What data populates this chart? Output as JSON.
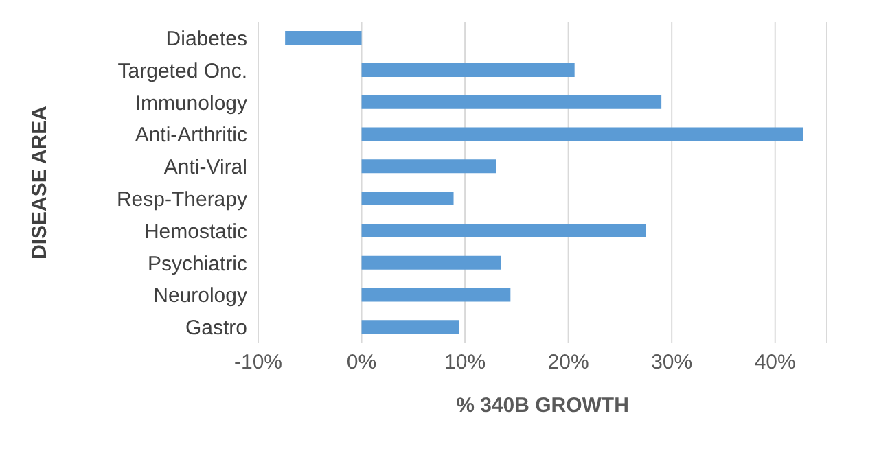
{
  "chart_data": {
    "type": "bar",
    "orientation": "horizontal",
    "xlabel": "% 340B GROWTH",
    "ylabel": "DISEASE AREA",
    "categories": [
      "Diabetes",
      "Targeted Onc.",
      "Immunology",
      "Anti-Arthritic",
      "Anti-Viral",
      "Resp-Therapy",
      "Hemostatic",
      "Psychiatric",
      "Neurology",
      "Gastro"
    ],
    "values": [
      -7.4,
      20.6,
      29.0,
      42.7,
      13.0,
      8.9,
      27.5,
      13.5,
      14.4,
      9.4
    ],
    "color": "#5b9bd5",
    "xlim": [
      -10,
      45
    ],
    "xticks": [
      {
        "value": -10,
        "label": "-10%"
      },
      {
        "value": 0,
        "label": "0%"
      },
      {
        "value": 10,
        "label": "10%"
      },
      {
        "value": 20,
        "label": "20%"
      },
      {
        "value": 30,
        "label": "30%"
      },
      {
        "value": 40,
        "label": "40%"
      }
    ],
    "grid": "x"
  }
}
